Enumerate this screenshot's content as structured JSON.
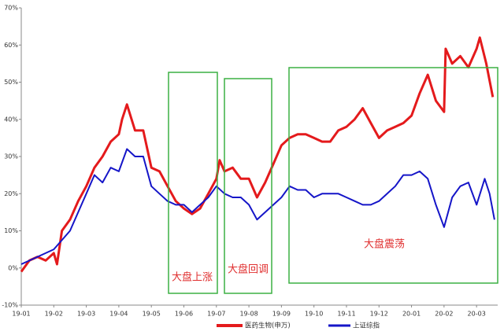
{
  "chart_data": {
    "type": "line",
    "xlim": [
      0,
      14.65
    ],
    "xticks": [
      {
        "value": 0,
        "label": "19-01"
      },
      {
        "value": 1,
        "label": "19-02"
      },
      {
        "value": 2,
        "label": "19-03"
      },
      {
        "value": 3,
        "label": "19-04"
      },
      {
        "value": 4,
        "label": "19-05"
      },
      {
        "value": 5,
        "label": "19-06"
      },
      {
        "value": 6,
        "label": "19-07"
      },
      {
        "value": 7,
        "label": "19-08"
      },
      {
        "value": 8,
        "label": "19-09"
      },
      {
        "value": 9,
        "label": "19-10"
      },
      {
        "value": 10,
        "label": "19-11"
      },
      {
        "value": 11,
        "label": "19-12"
      },
      {
        "value": 12,
        "label": "20-01"
      },
      {
        "value": 13,
        "label": "20-02"
      },
      {
        "value": 14,
        "label": "20-03"
      }
    ],
    "ylim": [
      -10,
      70
    ],
    "yticks": [
      {
        "value": -10,
        "label": "-10%"
      },
      {
        "value": 0,
        "label": "0%"
      },
      {
        "value": 10,
        "label": "10%"
      },
      {
        "value": 20,
        "label": "20%"
      },
      {
        "value": 30,
        "label": "30%"
      },
      {
        "value": 40,
        "label": "40%"
      },
      {
        "value": 50,
        "label": "50%"
      },
      {
        "value": 60,
        "label": "60%"
      },
      {
        "value": 70,
        "label": "70%"
      }
    ],
    "series": [
      {
        "name": "医药生物(申万)",
        "color": "#e41a1c",
        "width": 3,
        "x": [
          0,
          0.25,
          0.5,
          0.75,
          1.0,
          1.1,
          1.25,
          1.5,
          1.75,
          2.0,
          2.25,
          2.5,
          2.75,
          3.0,
          3.1,
          3.25,
          3.5,
          3.75,
          4.0,
          4.25,
          4.5,
          4.75,
          5.0,
          5.25,
          5.5,
          5.75,
          6.0,
          6.1,
          6.25,
          6.5,
          6.75,
          7.0,
          7.25,
          7.5,
          7.75,
          8.0,
          8.25,
          8.5,
          8.75,
          9.0,
          9.25,
          9.5,
          9.75,
          10.0,
          10.25,
          10.5,
          10.75,
          11.0,
          11.25,
          11.5,
          11.75,
          12.0,
          12.25,
          12.5,
          12.75,
          13.0,
          13.05,
          13.25,
          13.5,
          13.75,
          14.0,
          14.1,
          14.3,
          14.5
        ],
        "values": [
          -1,
          2,
          3,
          2,
          4,
          1,
          10,
          13,
          18,
          22,
          27,
          30,
          34,
          36,
          40,
          44,
          37,
          37,
          27,
          26,
          22,
          18,
          16,
          14.5,
          16,
          20,
          24,
          29,
          26,
          27,
          24,
          24,
          19,
          23,
          28,
          33,
          35,
          36,
          36,
          35,
          34,
          34,
          37,
          38,
          40,
          43,
          39,
          35,
          37,
          38,
          39,
          41,
          47,
          52,
          45,
          42,
          59,
          55,
          57,
          54,
          59,
          62,
          55,
          46
        ]
      },
      {
        "name": "上证综指",
        "color": "#1515c8",
        "width": 2,
        "x": [
          0,
          0.5,
          1.0,
          1.5,
          2.0,
          2.25,
          2.5,
          2.75,
          3.0,
          3.25,
          3.5,
          3.75,
          4.0,
          4.25,
          4.5,
          4.75,
          5.0,
          5.25,
          5.5,
          5.75,
          6.0,
          6.25,
          6.5,
          6.75,
          7.0,
          7.25,
          7.5,
          7.75,
          8.0,
          8.25,
          8.5,
          8.75,
          9.0,
          9.25,
          9.5,
          9.75,
          10.0,
          10.25,
          10.5,
          10.75,
          11.0,
          11.25,
          11.5,
          11.75,
          12.0,
          12.25,
          12.5,
          12.75,
          13.0,
          13.25,
          13.5,
          13.75,
          14.0,
          14.25,
          14.4,
          14.55
        ],
        "values": [
          1,
          3,
          5,
          10,
          20,
          25,
          23,
          27,
          26,
          32,
          30,
          30,
          22,
          20,
          18,
          17,
          17,
          15,
          17,
          19,
          22,
          20,
          19,
          19,
          17,
          13,
          15,
          17,
          19,
          22,
          21,
          21,
          19,
          20,
          20,
          20,
          19,
          18,
          17,
          17,
          18,
          20,
          22,
          25,
          25,
          26,
          24,
          17,
          11,
          19,
          22,
          23,
          17,
          24,
          20,
          13
        ]
      }
    ],
    "annotations": [
      {
        "text": "大盘上涨"
      },
      {
        "text": "大盘回调"
      },
      {
        "text": "大盘震荡"
      }
    ]
  }
}
